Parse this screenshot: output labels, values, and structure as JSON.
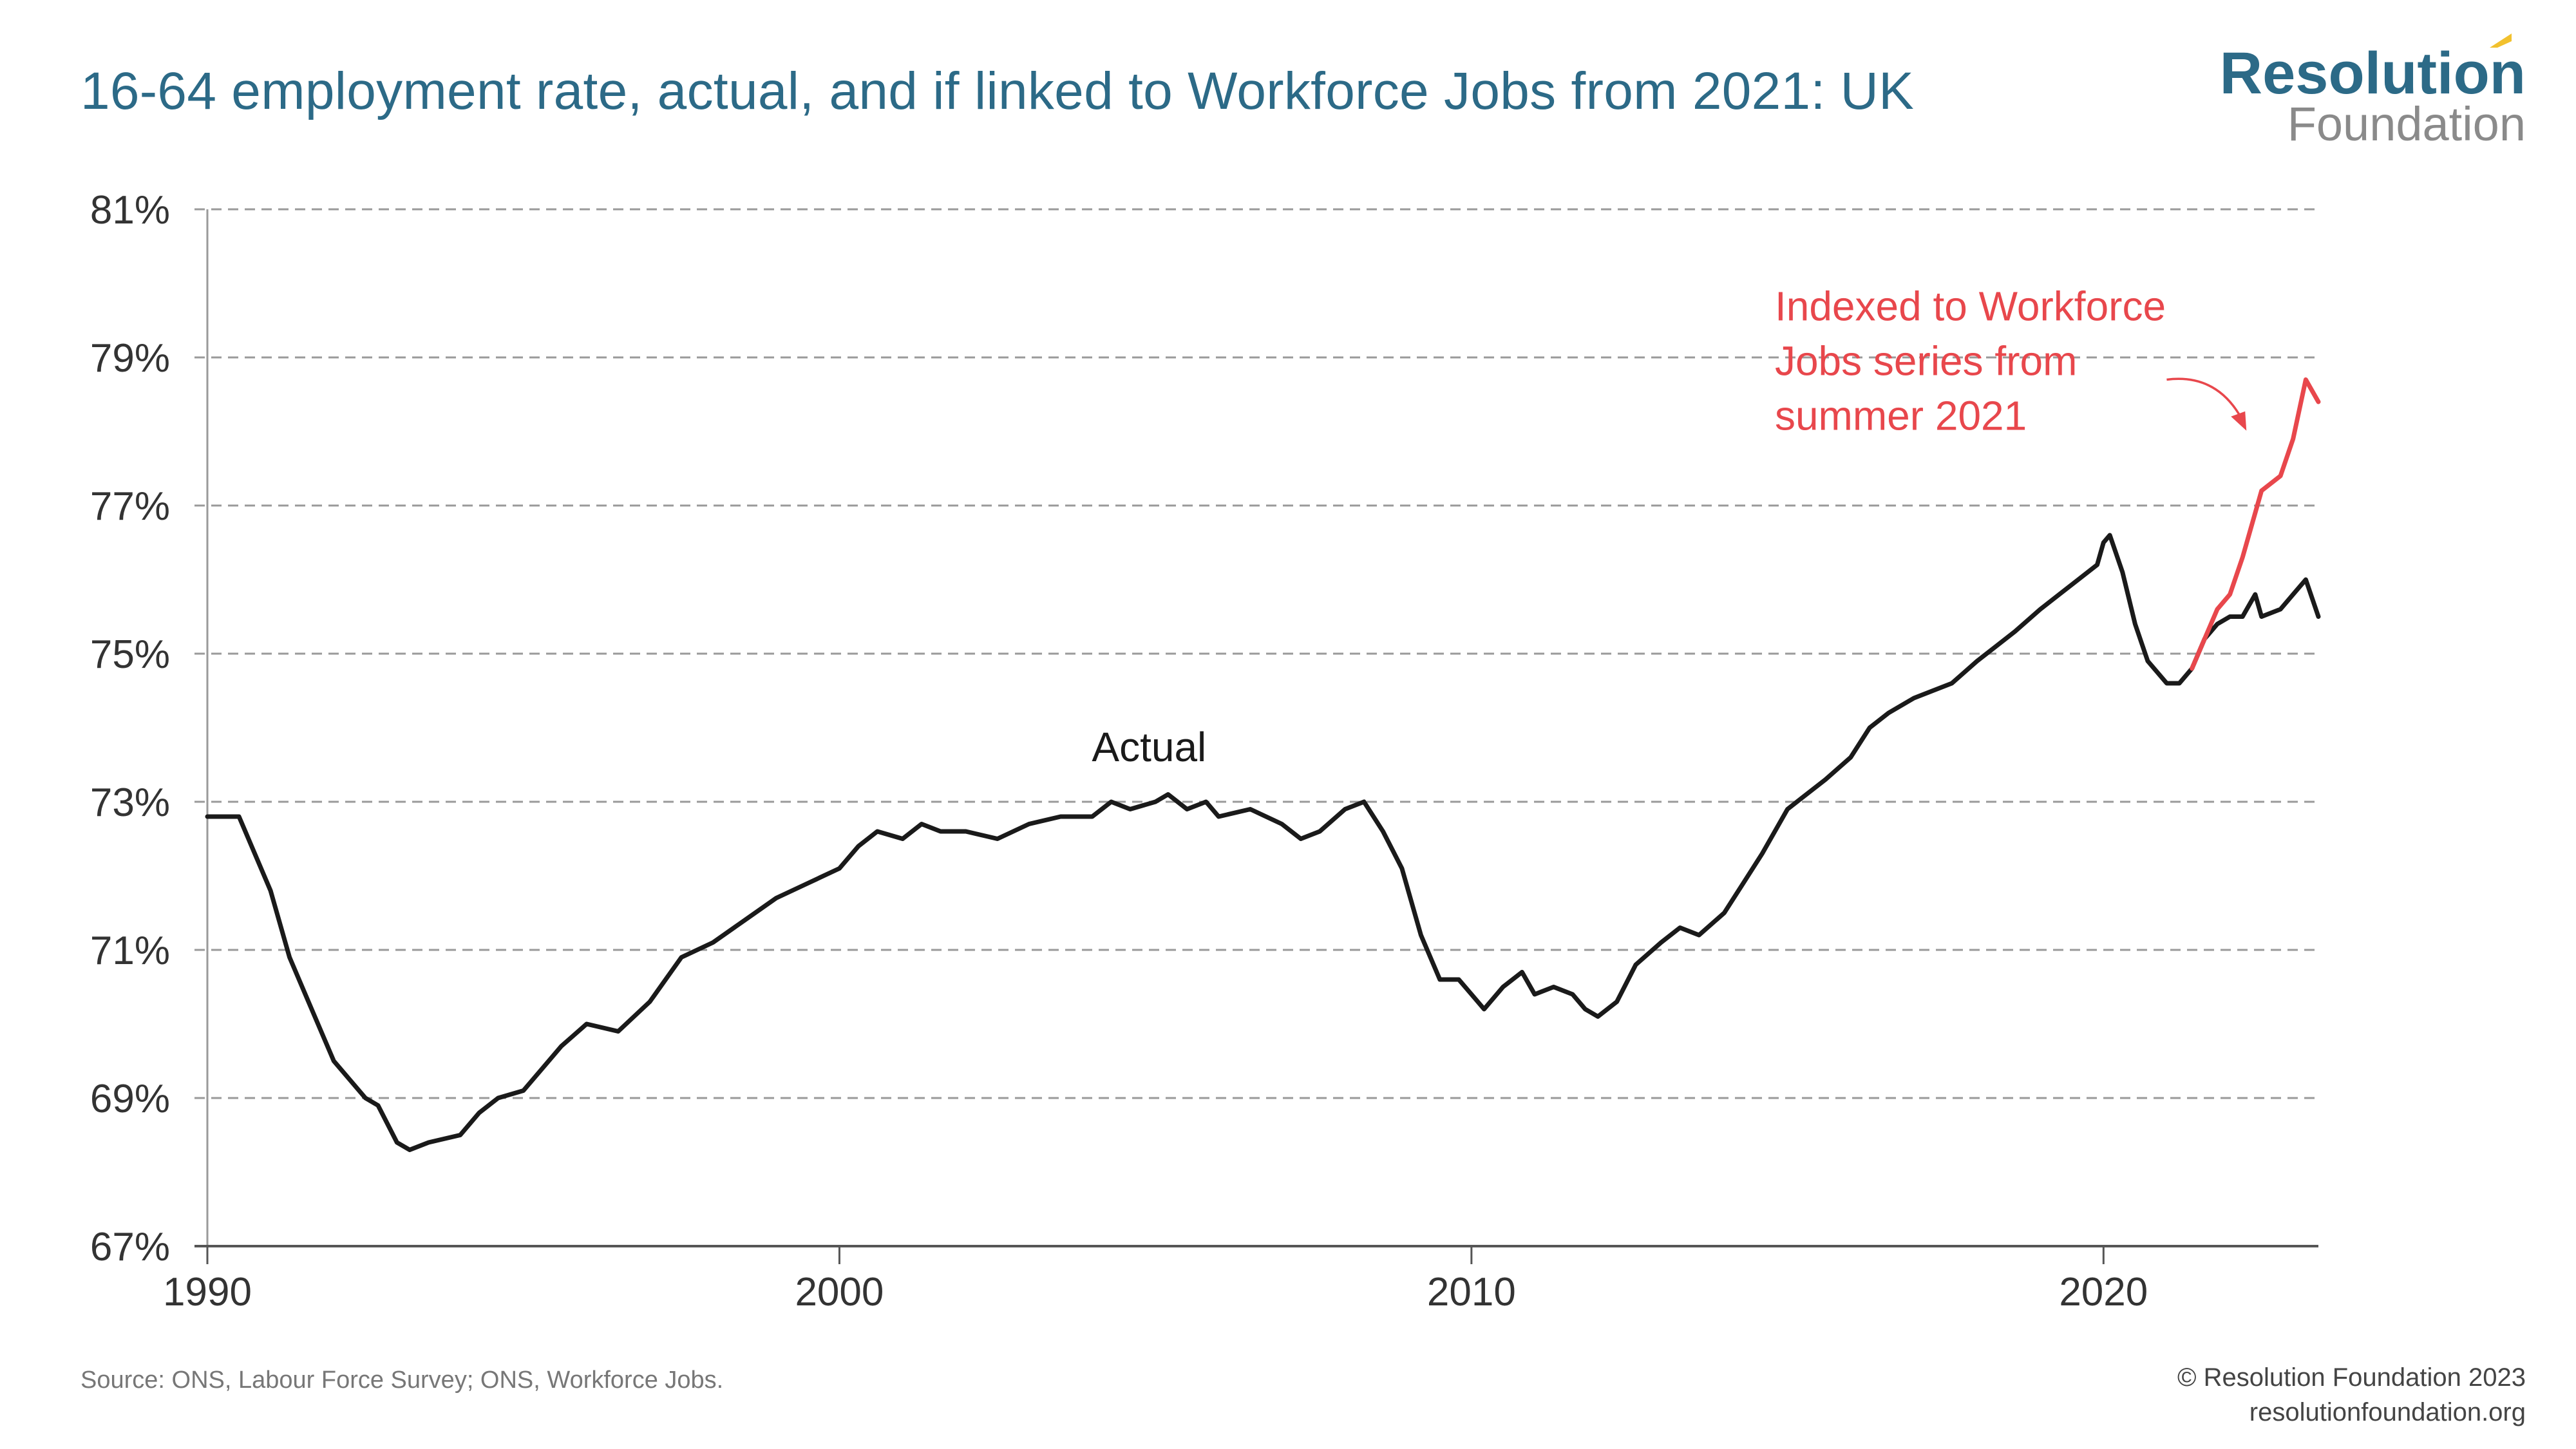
{
  "title": "16-64 employment rate, actual, and if linked to Workforce Jobs from 2021: UK",
  "logo": {
    "line1": "Resolution",
    "line2": "Foundation"
  },
  "footer": {
    "source": "Source: ONS, Labour Force Survey; ONS, Workforce Jobs.",
    "copyright": "© Resolution Foundation 2023",
    "website": "resolutionfoundation.org"
  },
  "colors": {
    "actual": "#1a1a1a",
    "indexed": "#e8474c",
    "title": "#2c6a87",
    "grid": "#9a9a9a"
  },
  "chart_data": {
    "type": "line",
    "title": "16-64 employment rate, actual, and if linked to Workforce Jobs from 2021: UK",
    "xlabel": "",
    "ylabel": "",
    "xlim": [
      1990,
      2023.4
    ],
    "ylim": [
      67,
      81
    ],
    "x_ticks": [
      1990,
      2000,
      2010,
      2020
    ],
    "x_tick_labels": [
      "1990",
      "2000",
      "2010",
      "2020"
    ],
    "y_ticks": [
      67,
      69,
      71,
      73,
      75,
      77,
      79,
      81
    ],
    "y_tick_labels": [
      "67%",
      "69%",
      "71%",
      "73%",
      "75%",
      "77%",
      "79%",
      "81%"
    ],
    "grid": "horizontal dashed",
    "legend": "none",
    "annotations": [
      {
        "text": "Actual",
        "series": "Actual"
      },
      {
        "text_lines": [
          "Indexed to Workforce",
          "Jobs series from",
          "summer 2021"
        ],
        "series": "Indexed to Workforce Jobs series from summer 2021",
        "arrow": true
      }
    ],
    "series": [
      {
        "name": "Actual",
        "color": "#1a1a1a",
        "points": [
          [
            1990.0,
            72.8
          ],
          [
            1990.5,
            72.8
          ],
          [
            1990.7,
            72.4
          ],
          [
            1991.0,
            71.8
          ],
          [
            1991.3,
            70.9
          ],
          [
            1991.6,
            70.3
          ],
          [
            1992.0,
            69.5
          ],
          [
            1992.5,
            69.0
          ],
          [
            1992.7,
            68.9
          ],
          [
            1993.0,
            68.4
          ],
          [
            1993.2,
            68.3
          ],
          [
            1993.5,
            68.4
          ],
          [
            1994.0,
            68.5
          ],
          [
            1994.3,
            68.8
          ],
          [
            1994.6,
            69.0
          ],
          [
            1995.0,
            69.1
          ],
          [
            1995.3,
            69.4
          ],
          [
            1995.6,
            69.7
          ],
          [
            1996.0,
            70.0
          ],
          [
            1996.5,
            69.9
          ],
          [
            1997.0,
            70.3
          ],
          [
            1997.5,
            70.9
          ],
          [
            1998.0,
            71.1
          ],
          [
            1998.5,
            71.4
          ],
          [
            1999.0,
            71.7
          ],
          [
            1999.5,
            71.9
          ],
          [
            2000.0,
            72.1
          ],
          [
            2000.3,
            72.4
          ],
          [
            2000.6,
            72.6
          ],
          [
            2001.0,
            72.5
          ],
          [
            2001.3,
            72.7
          ],
          [
            2001.6,
            72.6
          ],
          [
            2002.0,
            72.6
          ],
          [
            2002.5,
            72.5
          ],
          [
            2003.0,
            72.7
          ],
          [
            2003.5,
            72.8
          ],
          [
            2004.0,
            72.8
          ],
          [
            2004.3,
            73.0
          ],
          [
            2004.6,
            72.9
          ],
          [
            2005.0,
            73.0
          ],
          [
            2005.2,
            73.1
          ],
          [
            2005.5,
            72.9
          ],
          [
            2005.8,
            73.0
          ],
          [
            2006.0,
            72.8
          ],
          [
            2006.5,
            72.9
          ],
          [
            2007.0,
            72.7
          ],
          [
            2007.3,
            72.5
          ],
          [
            2007.6,
            72.6
          ],
          [
            2008.0,
            72.9
          ],
          [
            2008.3,
            73.0
          ],
          [
            2008.6,
            72.6
          ],
          [
            2008.9,
            72.1
          ],
          [
            2009.0,
            71.8
          ],
          [
            2009.2,
            71.2
          ],
          [
            2009.5,
            70.6
          ],
          [
            2009.8,
            70.6
          ],
          [
            2010.0,
            70.4
          ],
          [
            2010.2,
            70.2
          ],
          [
            2010.5,
            70.5
          ],
          [
            2010.8,
            70.7
          ],
          [
            2011.0,
            70.4
          ],
          [
            2011.3,
            70.5
          ],
          [
            2011.6,
            70.4
          ],
          [
            2011.8,
            70.2
          ],
          [
            2012.0,
            70.1
          ],
          [
            2012.3,
            70.3
          ],
          [
            2012.6,
            70.8
          ],
          [
            2013.0,
            71.1
          ],
          [
            2013.3,
            71.3
          ],
          [
            2013.6,
            71.2
          ],
          [
            2014.0,
            71.5
          ],
          [
            2014.3,
            71.9
          ],
          [
            2014.6,
            72.3
          ],
          [
            2015.0,
            72.9
          ],
          [
            2015.3,
            73.1
          ],
          [
            2015.6,
            73.3
          ],
          [
            2016.0,
            73.6
          ],
          [
            2016.3,
            74.0
          ],
          [
            2016.6,
            74.2
          ],
          [
            2017.0,
            74.4
          ],
          [
            2017.3,
            74.5
          ],
          [
            2017.6,
            74.6
          ],
          [
            2018.0,
            74.9
          ],
          [
            2018.3,
            75.1
          ],
          [
            2018.6,
            75.3
          ],
          [
            2019.0,
            75.6
          ],
          [
            2019.3,
            75.8
          ],
          [
            2019.6,
            76.0
          ],
          [
            2019.9,
            76.2
          ],
          [
            2020.0,
            76.5
          ],
          [
            2020.1,
            76.6
          ],
          [
            2020.3,
            76.1
          ],
          [
            2020.5,
            75.4
          ],
          [
            2020.7,
            74.9
          ],
          [
            2021.0,
            74.6
          ],
          [
            2021.2,
            74.6
          ],
          [
            2021.4,
            74.8
          ],
          [
            2021.6,
            75.2
          ],
          [
            2021.8,
            75.4
          ],
          [
            2022.0,
            75.5
          ],
          [
            2022.2,
            75.5
          ],
          [
            2022.4,
            75.8
          ],
          [
            2022.5,
            75.5
          ],
          [
            2022.8,
            75.6
          ],
          [
            2023.0,
            75.8
          ],
          [
            2023.2,
            76.0
          ],
          [
            2023.4,
            75.5
          ]
        ]
      },
      {
        "name": "Indexed to Workforce Jobs series from summer 2021",
        "color": "#e8474c",
        "points": [
          [
            2021.4,
            74.8
          ],
          [
            2021.6,
            75.2
          ],
          [
            2021.8,
            75.6
          ],
          [
            2022.0,
            75.8
          ],
          [
            2022.2,
            76.3
          ],
          [
            2022.5,
            77.2
          ],
          [
            2022.8,
            77.4
          ],
          [
            2023.0,
            77.9
          ],
          [
            2023.2,
            78.7
          ],
          [
            2023.4,
            78.4
          ]
        ]
      }
    ]
  }
}
